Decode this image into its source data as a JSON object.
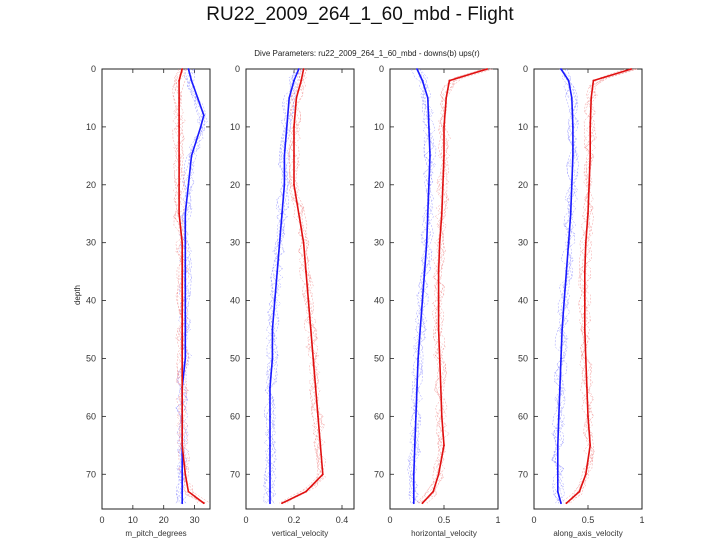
{
  "slide": {
    "title": "RU22_2009_264_1_60_mbd - Flight"
  },
  "figure": {
    "suptitle": "Dive Parameters: ru22_2009_264_1_60_mbd - downs(b) ups(r)",
    "shared_ylabel": "depth",
    "colors": {
      "downs": "#1a1aff",
      "ups": "#e01010",
      "downs_thin": "#8a8aff",
      "ups_thin": "#f08a8a",
      "axis": "#222222"
    }
  },
  "chart_data": [
    {
      "type": "line",
      "xlabel": "m_pitch_degrees",
      "xlim": [
        0,
        35
      ],
      "xticks": [
        0,
        10,
        20,
        30
      ],
      "ylim": [
        0,
        76
      ],
      "yticks": [
        0,
        10,
        20,
        30,
        40,
        50,
        60,
        70
      ],
      "y_inverted": true,
      "depth": [
        0,
        2,
        5,
        8,
        10,
        15,
        20,
        25,
        30,
        35,
        40,
        45,
        50,
        55,
        60,
        65,
        70,
        73,
        75
      ],
      "series": [
        {
          "name": "downs",
          "values": [
            28,
            29,
            31,
            33,
            32,
            29,
            28,
            27,
            27,
            27,
            27,
            27,
            27,
            26,
            26,
            26,
            26,
            26,
            26
          ]
        },
        {
          "name": "ups",
          "values": [
            26,
            25,
            25,
            25,
            25,
            25,
            25,
            25,
            26,
            26,
            26,
            26,
            26,
            26,
            26,
            26,
            27,
            28,
            33
          ]
        }
      ]
    },
    {
      "type": "line",
      "xlabel": "vertical_velocity",
      "xlim": [
        0,
        0.45
      ],
      "xticks": [
        0,
        0.2,
        0.4
      ],
      "xticklabels": [
        "0",
        "0.2",
        "0.4"
      ],
      "ylim": [
        0,
        76
      ],
      "yticks": [
        0,
        10,
        20,
        30,
        40,
        50,
        60,
        70
      ],
      "y_inverted": true,
      "depth": [
        0,
        2,
        5,
        10,
        15,
        20,
        25,
        30,
        35,
        40,
        45,
        50,
        55,
        60,
        65,
        70,
        73,
        75
      ],
      "series": [
        {
          "name": "downs",
          "values": [
            0.22,
            0.2,
            0.18,
            0.17,
            0.16,
            0.16,
            0.15,
            0.14,
            0.13,
            0.12,
            0.11,
            0.11,
            0.1,
            0.1,
            0.1,
            0.1,
            0.1,
            0.1
          ]
        },
        {
          "name": "ups",
          "values": [
            0.24,
            0.23,
            0.21,
            0.2,
            0.2,
            0.2,
            0.22,
            0.24,
            0.25,
            0.26,
            0.27,
            0.28,
            0.29,
            0.3,
            0.31,
            0.32,
            0.25,
            0.15
          ]
        }
      ]
    },
    {
      "type": "line",
      "xlabel": "horizontal_velocity",
      "xlim": [
        0,
        1
      ],
      "xticks": [
        0,
        0.5,
        1
      ],
      "xticklabels": [
        "0",
        "0.5",
        "1"
      ],
      "ylim": [
        0,
        76
      ],
      "yticks": [
        0,
        10,
        20,
        30,
        40,
        50,
        60,
        70
      ],
      "y_inverted": true,
      "depth": [
        0,
        2,
        5,
        10,
        15,
        20,
        25,
        30,
        35,
        40,
        45,
        50,
        55,
        60,
        65,
        70,
        73,
        75
      ],
      "series": [
        {
          "name": "downs",
          "values": [
            0.25,
            0.3,
            0.35,
            0.36,
            0.37,
            0.36,
            0.35,
            0.34,
            0.32,
            0.3,
            0.28,
            0.26,
            0.25,
            0.24,
            0.23,
            0.22,
            0.22,
            0.22
          ]
        },
        {
          "name": "ups",
          "values": [
            0.9,
            0.55,
            0.52,
            0.5,
            0.5,
            0.49,
            0.48,
            0.46,
            0.45,
            0.45,
            0.45,
            0.46,
            0.47,
            0.48,
            0.5,
            0.45,
            0.4,
            0.3
          ]
        }
      ]
    },
    {
      "type": "line",
      "xlabel": "along_axis_velocity",
      "xlim": [
        0,
        1
      ],
      "xticks": [
        0,
        0.5,
        1
      ],
      "xticklabels": [
        "0",
        "0.5",
        "1"
      ],
      "ylim": [
        0,
        76
      ],
      "yticks": [
        0,
        10,
        20,
        30,
        40,
        50,
        60,
        70
      ],
      "y_inverted": true,
      "depth": [
        0,
        2,
        5,
        10,
        15,
        20,
        25,
        30,
        35,
        40,
        45,
        50,
        55,
        60,
        65,
        70,
        73,
        75
      ],
      "series": [
        {
          "name": "downs",
          "values": [
            0.25,
            0.32,
            0.35,
            0.36,
            0.36,
            0.35,
            0.34,
            0.32,
            0.3,
            0.28,
            0.26,
            0.25,
            0.24,
            0.23,
            0.22,
            0.22,
            0.22,
            0.25
          ]
        },
        {
          "name": "ups",
          "values": [
            0.9,
            0.55,
            0.53,
            0.52,
            0.52,
            0.51,
            0.5,
            0.48,
            0.47,
            0.47,
            0.47,
            0.48,
            0.49,
            0.5,
            0.52,
            0.48,
            0.42,
            0.3
          ]
        }
      ]
    }
  ]
}
